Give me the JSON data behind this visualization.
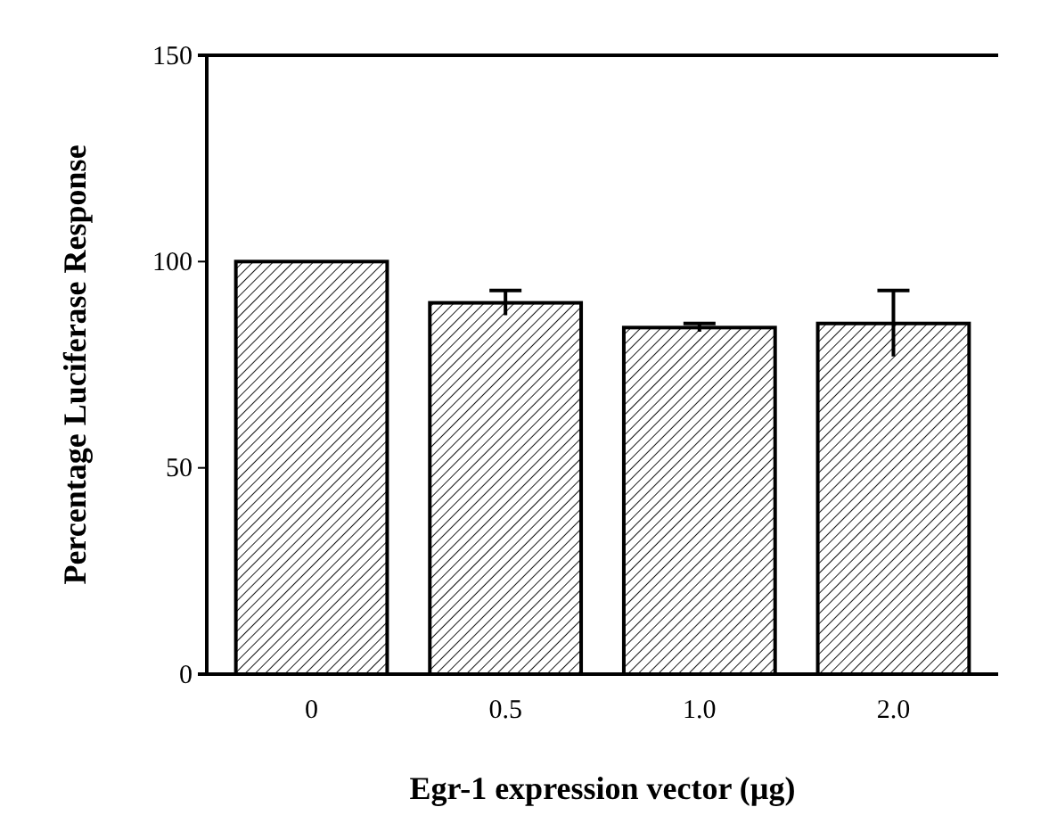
{
  "chart_data": {
    "type": "bar",
    "xlabel": "Egr-1 expression vector (µg)",
    "ylabel": "Percentage Luciferase Response",
    "categories": [
      "0",
      "0.5",
      "1.0",
      "2.0"
    ],
    "values": [
      100,
      90,
      84,
      85
    ],
    "errors": [
      null,
      3,
      1,
      8
    ],
    "color": "#000000",
    "ylim": [
      0,
      150
    ],
    "yticks": [
      0,
      50,
      100,
      150
    ],
    "grid": false
  }
}
